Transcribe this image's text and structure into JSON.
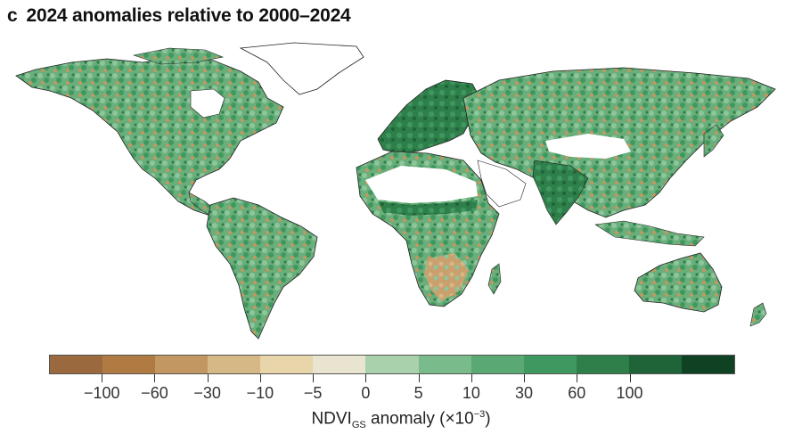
{
  "title": {
    "letter": "c",
    "text": "2024 anomalies relative to 2000–2024"
  },
  "legend": {
    "colors": [
      "#9a6a3e",
      "#b07b43",
      "#c39761",
      "#d6b886",
      "#e8d5aa",
      "#e9e4cf",
      "#a9d1ac",
      "#79bb8a",
      "#5aa872",
      "#3f9860",
      "#2f7f4a",
      "#1f6338",
      "#0f4222"
    ],
    "tick_labels": [
      "−100",
      "−60",
      "−30",
      "−10",
      "−5",
      "0",
      "5",
      "10",
      "30",
      "60",
      "100"
    ],
    "axis_label": {
      "main": "NDVI",
      "subscript": "GS",
      "rest": " anomaly (×10",
      "superscript": "−3",
      "close": ")"
    }
  },
  "map": {
    "land_colors": {
      "green_light": "#8cc69a",
      "green_mid": "#5aa872",
      "green_dark": "#2f7f4a",
      "brown": "#c39761",
      "no_data": "#ffffff",
      "outline": "#222222"
    }
  }
}
